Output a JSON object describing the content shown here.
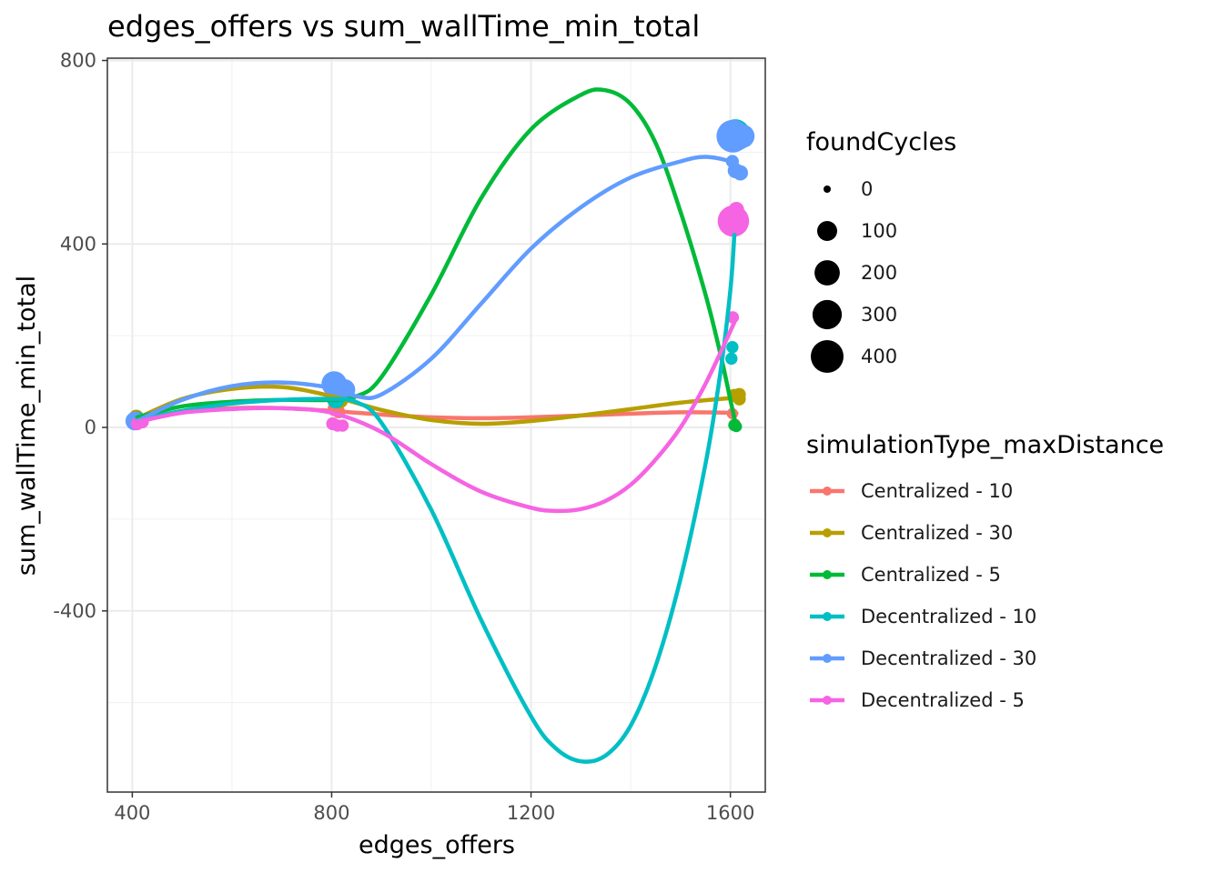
{
  "chart_data": {
    "type": "scatter",
    "title": "edges_offers  vs  sum_wallTime_min_total",
    "xlabel": "edges_offers",
    "ylabel": "sum_wallTime_min_total",
    "xlim": [
      350,
      1670
    ],
    "ylim": [
      -795,
      805
    ],
    "x_ticks": [
      400,
      800,
      1200,
      1600
    ],
    "x_tick_labels": [
      "400",
      "800",
      "1200",
      "1600"
    ],
    "y_ticks": [
      -400,
      0,
      400,
      800
    ],
    "y_tick_labels": [
      "-400",
      "0",
      "400",
      "800"
    ],
    "grid": true,
    "legend_position": "right",
    "size_legend": {
      "title": "foundCycles",
      "entries": [
        {
          "label": "0",
          "value": 0
        },
        {
          "label": "100",
          "value": 100
        },
        {
          "label": "200",
          "value": 200
        },
        {
          "label": "300",
          "value": 300
        },
        {
          "label": "400",
          "value": 400
        }
      ]
    },
    "color_legend": {
      "title": "simulationType_maxDistance"
    },
    "series": [
      {
        "name": "Centralized - 10",
        "color": "#F8766D",
        "points": [
          {
            "x": 408,
            "y": 20,
            "size": 20
          },
          {
            "x": 413,
            "y": 14,
            "size": 10
          },
          {
            "x": 806,
            "y": 40,
            "size": 30
          },
          {
            "x": 814,
            "y": 34,
            "size": 20
          },
          {
            "x": 1604,
            "y": 30,
            "size": 10
          },
          {
            "x": 1610,
            "y": 8,
            "size": 5
          }
        ],
        "smooth": [
          [
            410,
            18
          ],
          [
            500,
            34
          ],
          [
            600,
            42
          ],
          [
            700,
            42
          ],
          [
            800,
            36
          ],
          [
            900,
            28
          ],
          [
            1000,
            22
          ],
          [
            1100,
            20
          ],
          [
            1200,
            22
          ],
          [
            1300,
            26
          ],
          [
            1400,
            30
          ],
          [
            1500,
            33
          ],
          [
            1600,
            32
          ],
          [
            1612,
            31
          ]
        ]
      },
      {
        "name": "Centralized - 30",
        "color": "#B79F00",
        "points": [
          {
            "x": 408,
            "y": 22,
            "size": 40
          },
          {
            "x": 816,
            "y": 60,
            "size": 60
          },
          {
            "x": 810,
            "y": 70,
            "size": 40
          },
          {
            "x": 1608,
            "y": 70,
            "size": 20
          },
          {
            "x": 1618,
            "y": 62,
            "size": 20
          },
          {
            "x": 1618,
            "y": 72,
            "size": 20
          }
        ],
        "smooth": [
          [
            410,
            20
          ],
          [
            500,
            62
          ],
          [
            600,
            84
          ],
          [
            700,
            88
          ],
          [
            800,
            68
          ],
          [
            900,
            38
          ],
          [
            1000,
            16
          ],
          [
            1100,
            8
          ],
          [
            1200,
            14
          ],
          [
            1300,
            26
          ],
          [
            1400,
            40
          ],
          [
            1500,
            54
          ],
          [
            1600,
            64
          ],
          [
            1615,
            66
          ]
        ]
      },
      {
        "name": "Centralized - 5",
        "color": "#00BA38",
        "points": [
          {
            "x": 408,
            "y": 15,
            "size": 20
          },
          {
            "x": 810,
            "y": 62,
            "size": 40
          },
          {
            "x": 1608,
            "y": 5,
            "size": 15
          },
          {
            "x": 1612,
            "y": 2,
            "size": 10
          }
        ],
        "smooth": [
          [
            410,
            22
          ],
          [
            500,
            46
          ],
          [
            600,
            56
          ],
          [
            700,
            60
          ],
          [
            800,
            60
          ],
          [
            850,
            68
          ],
          [
            900,
            110
          ],
          [
            1000,
            290
          ],
          [
            1100,
            500
          ],
          [
            1200,
            650
          ],
          [
            1300,
            725
          ],
          [
            1350,
            735
          ],
          [
            1400,
            705
          ],
          [
            1450,
            620
          ],
          [
            1500,
            470
          ],
          [
            1550,
            290
          ],
          [
            1580,
            160
          ],
          [
            1600,
            60
          ],
          [
            1612,
            0
          ]
        ]
      },
      {
        "name": "Decentralized - 10",
        "color": "#00BFC4",
        "points": [
          {
            "x": 410,
            "y": 16,
            "size": 60
          },
          {
            "x": 808,
            "y": 60,
            "size": 60
          },
          {
            "x": 1604,
            "y": 175,
            "size": 15
          },
          {
            "x": 1602,
            "y": 150,
            "size": 15
          },
          {
            "x": 1610,
            "y": 640,
            "size": 300
          },
          {
            "x": 1615,
            "y": 635,
            "size": 260
          }
        ],
        "smooth": [
          [
            410,
            16
          ],
          [
            500,
            36
          ],
          [
            600,
            52
          ],
          [
            700,
            60
          ],
          [
            800,
            62
          ],
          [
            850,
            55
          ],
          [
            900,
            10
          ],
          [
            1000,
            -180
          ],
          [
            1100,
            -420
          ],
          [
            1200,
            -630
          ],
          [
            1250,
            -700
          ],
          [
            1300,
            -728
          ],
          [
            1350,
            -715
          ],
          [
            1400,
            -650
          ],
          [
            1450,
            -520
          ],
          [
            1500,
            -330
          ],
          [
            1550,
            -80
          ],
          [
            1580,
            120
          ],
          [
            1600,
            300
          ],
          [
            1608,
            420
          ]
        ]
      },
      {
        "name": "Decentralized - 30",
        "color": "#619CFF",
        "points": [
          {
            "x": 405,
            "y": 14,
            "size": 80
          },
          {
            "x": 805,
            "y": 95,
            "size": 200
          },
          {
            "x": 826,
            "y": 82,
            "size": 120
          },
          {
            "x": 1605,
            "y": 635,
            "size": 400
          },
          {
            "x": 1625,
            "y": 635,
            "size": 160
          },
          {
            "x": 1610,
            "y": 560,
            "size": 40
          },
          {
            "x": 1620,
            "y": 555,
            "size": 40
          },
          {
            "x": 1604,
            "y": 580,
            "size": 20
          }
        ],
        "smooth": [
          [
            410,
            14
          ],
          [
            500,
            60
          ],
          [
            600,
            90
          ],
          [
            700,
            98
          ],
          [
            800,
            86
          ],
          [
            850,
            68
          ],
          [
            900,
            72
          ],
          [
            1000,
            150
          ],
          [
            1100,
            270
          ],
          [
            1200,
            390
          ],
          [
            1300,
            480
          ],
          [
            1400,
            545
          ],
          [
            1500,
            580
          ],
          [
            1550,
            590
          ],
          [
            1600,
            580
          ],
          [
            1612,
            568
          ]
        ]
      },
      {
        "name": "Decentralized - 5",
        "color": "#F564E3",
        "points": [
          {
            "x": 410,
            "y": 8,
            "size": 20
          },
          {
            "x": 420,
            "y": 12,
            "size": 20
          },
          {
            "x": 802,
            "y": 8,
            "size": 20
          },
          {
            "x": 812,
            "y": 4,
            "size": 15
          },
          {
            "x": 822,
            "y": 4,
            "size": 15
          },
          {
            "x": 1606,
            "y": 450,
            "size": 360
          },
          {
            "x": 1612,
            "y": 475,
            "size": 40
          },
          {
            "x": 1605,
            "y": 240,
            "size": 15
          }
        ],
        "smooth": [
          [
            410,
            12
          ],
          [
            500,
            32
          ],
          [
            600,
            40
          ],
          [
            700,
            42
          ],
          [
            800,
            32
          ],
          [
            900,
            -10
          ],
          [
            1000,
            -80
          ],
          [
            1100,
            -140
          ],
          [
            1200,
            -175
          ],
          [
            1250,
            -182
          ],
          [
            1300,
            -178
          ],
          [
            1350,
            -160
          ],
          [
            1400,
            -125
          ],
          [
            1450,
            -70
          ],
          [
            1500,
            0
          ],
          [
            1550,
            95
          ],
          [
            1600,
            210
          ],
          [
            1612,
            240
          ]
        ]
      }
    ]
  }
}
